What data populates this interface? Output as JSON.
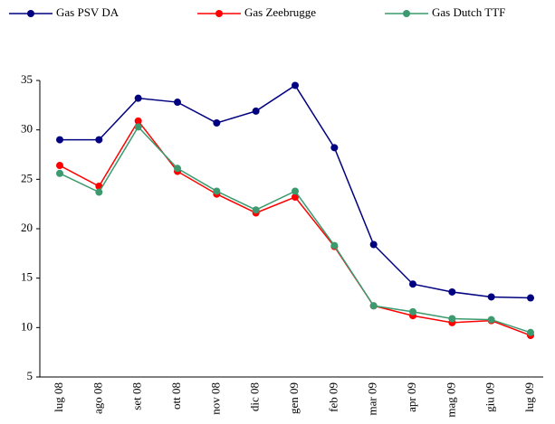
{
  "chart_data": {
    "type": "line",
    "categories": [
      "lug 08",
      "ago 08",
      "set 08",
      "ott 08",
      "nov 08",
      "dic 08",
      "gen 09",
      "feb 09",
      "mar 09",
      "apr 09",
      "mag 09",
      "giu 09",
      "lug 09"
    ],
    "series": [
      {
        "name": "Gas PSV DA",
        "color": "#000080",
        "values": [
          29.0,
          29.0,
          33.2,
          32.8,
          30.7,
          31.9,
          34.5,
          28.2,
          18.4,
          14.4,
          13.6,
          13.1,
          13.0
        ]
      },
      {
        "name": "Gas Zeebrugge",
        "color": "#ff0000",
        "values": [
          26.4,
          24.3,
          30.9,
          25.8,
          23.5,
          21.6,
          23.2,
          18.2,
          12.2,
          11.2,
          10.5,
          10.7,
          9.2
        ]
      },
      {
        "name": "Gas Dutch TTF",
        "color": "#3c9a6e",
        "values": [
          25.6,
          23.7,
          30.3,
          26.1,
          23.8,
          21.9,
          23.8,
          18.3,
          12.2,
          11.6,
          10.9,
          10.8,
          9.5
        ]
      }
    ],
    "ylim": [
      5,
      35
    ],
    "yticks": [
      5,
      10,
      15,
      20,
      25,
      30,
      35
    ],
    "grid": false,
    "legend": "top"
  }
}
